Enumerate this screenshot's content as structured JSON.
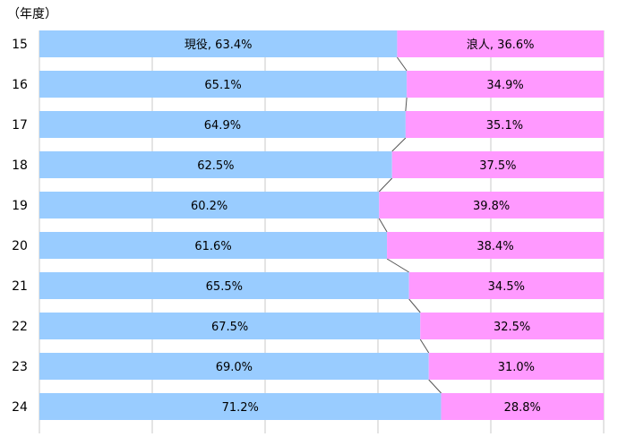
{
  "chart_data": {
    "type": "bar",
    "stacked": true,
    "orientation": "horizontal",
    "percent_stacked": true,
    "title": "",
    "unit_label": "（年度）",
    "categories": [
      "15",
      "16",
      "17",
      "18",
      "19",
      "20",
      "21",
      "22",
      "23",
      "24"
    ],
    "series": [
      {
        "name": "現役",
        "color": "#99ccff",
        "values": [
          63.4,
          65.1,
          64.9,
          62.5,
          60.2,
          61.6,
          65.5,
          67.5,
          69.0,
          71.2
        ],
        "labels": [
          "現役, 63.4%",
          "65.1%",
          "64.9%",
          "62.5%",
          "60.2%",
          "61.6%",
          "65.5%",
          "67.5%",
          "69.0%",
          "71.2%"
        ]
      },
      {
        "name": "浪人",
        "color": "#ff99ff",
        "values": [
          36.6,
          34.9,
          35.1,
          37.5,
          39.8,
          38.4,
          34.5,
          32.5,
          31.0,
          28.8
        ],
        "labels": [
          "浪人, 36.6%",
          "34.9%",
          "35.1%",
          "37.5%",
          "39.8%",
          "38.4%",
          "34.5%",
          "32.5%",
          "31.0%",
          "28.8%"
        ]
      }
    ],
    "xlim": [
      0,
      100
    ],
    "grid": true,
    "series_lines": true,
    "legend": "none"
  }
}
